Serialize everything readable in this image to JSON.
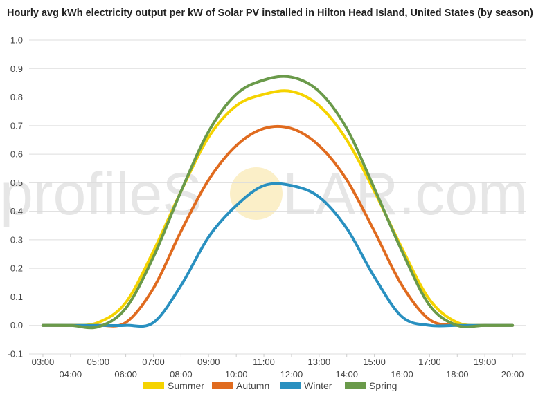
{
  "chart_data": {
    "type": "line",
    "title": "Hourly avg kWh electricity output per kW of Solar PV installed in Hilton Head Island, United States (by season)",
    "xlabel": "",
    "ylabel": "",
    "ylim": [
      -0.1,
      1.0
    ],
    "yticks": [
      "-0.1",
      "0.0",
      "0.1",
      "0.2",
      "0.3",
      "0.4",
      "0.5",
      "0.6",
      "0.7",
      "0.8",
      "0.9",
      "1.0"
    ],
    "x": [
      "03:00",
      "04:00",
      "05:00",
      "06:00",
      "07:00",
      "08:00",
      "09:00",
      "10:00",
      "11:00",
      "12:00",
      "13:00",
      "14:00",
      "15:00",
      "16:00",
      "17:00",
      "18:00",
      "19:00",
      "20:00"
    ],
    "grid": true,
    "legend_position": "bottom",
    "series": [
      {
        "name": "Summer",
        "color": "#f5d300",
        "values": [
          0,
          0,
          0.01,
          0.08,
          0.26,
          0.47,
          0.66,
          0.77,
          0.81,
          0.82,
          0.77,
          0.65,
          0.47,
          0.27,
          0.09,
          0.01,
          0,
          0
        ]
      },
      {
        "name": "Autumn",
        "color": "#e06b1f",
        "values": [
          0,
          0,
          0,
          0.01,
          0.13,
          0.33,
          0.51,
          0.63,
          0.69,
          0.69,
          0.63,
          0.51,
          0.33,
          0.14,
          0.02,
          0,
          0,
          0
        ]
      },
      {
        "name": "Winter",
        "color": "#2990c0",
        "values": [
          0,
          0,
          0,
          0,
          0.01,
          0.14,
          0.31,
          0.42,
          0.49,
          0.49,
          0.45,
          0.34,
          0.17,
          0.03,
          0,
          0,
          0,
          0
        ]
      },
      {
        "name": "Spring",
        "color": "#6a9a4a",
        "values": [
          0,
          0,
          -0.005,
          0.06,
          0.24,
          0.47,
          0.68,
          0.81,
          0.86,
          0.87,
          0.82,
          0.69,
          0.48,
          0.26,
          0.07,
          0,
          0,
          0
        ]
      }
    ]
  },
  "watermark": {
    "left": "profileS",
    "right": "LAR.com"
  }
}
